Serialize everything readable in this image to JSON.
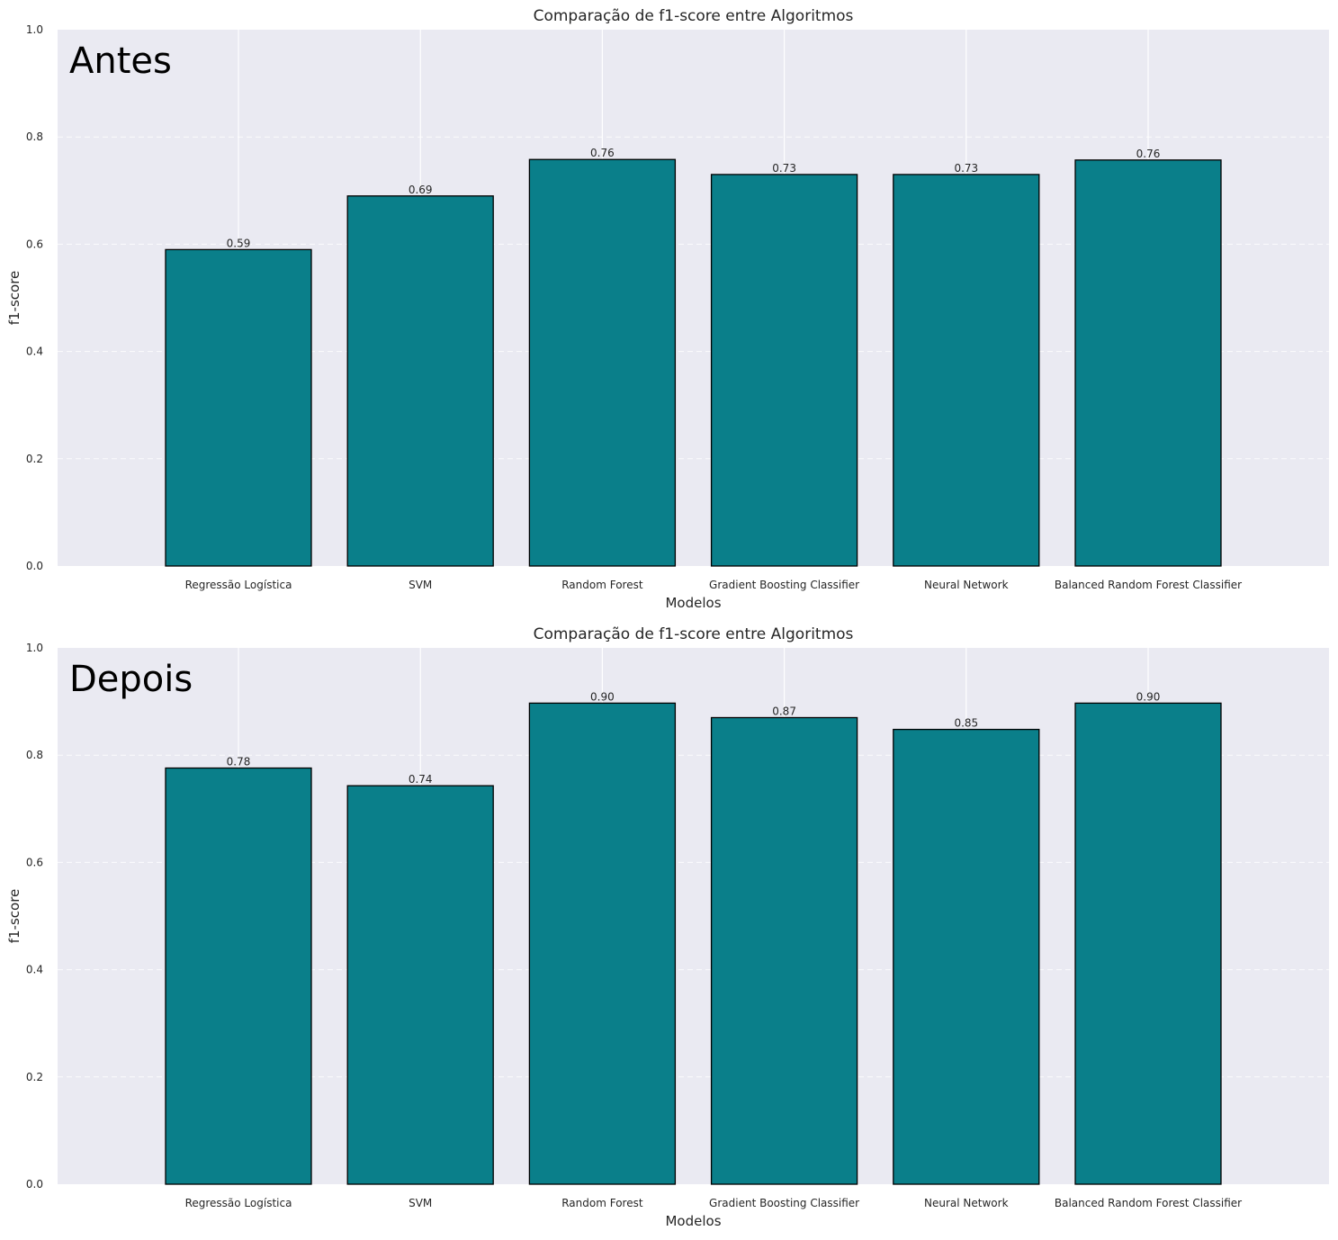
{
  "colors": {
    "bar": "#0a7f8a",
    "bar_edge": "#000000",
    "plot_background": "#eaeaf2",
    "grid": "#ffffff"
  },
  "chart_data": [
    {
      "type": "bar",
      "title": "Comparação de f1-score entre Algoritmos",
      "panel_tag": "Antes",
      "xlabel": "Modelos",
      "ylabel": "f1-score",
      "ylim": [
        0,
        1.0
      ],
      "yticks": [
        "0.0",
        "0.2",
        "0.4",
        "0.6",
        "0.8",
        "1.0"
      ],
      "categories": [
        "Regressão Logística",
        "SVM",
        "Random Forest",
        "Gradient Boosting Classifier",
        "Neural Network",
        "Balanced Random Forest Classifier"
      ],
      "values": [
        0.59,
        0.69,
        0.758,
        0.73,
        0.73,
        0.757
      ],
      "value_labels": [
        "0.59",
        "0.69",
        "0.76",
        "0.73",
        "0.73",
        "0.76"
      ],
      "grid": true
    },
    {
      "type": "bar",
      "title": "Comparação de f1-score entre Algoritmos",
      "panel_tag": "Depois",
      "xlabel": "Modelos",
      "ylabel": "f1-score",
      "ylim": [
        0,
        1.0
      ],
      "yticks": [
        "0.0",
        "0.2",
        "0.4",
        "0.6",
        "0.8",
        "1.0"
      ],
      "categories": [
        "Regressão Logística",
        "SVM",
        "Random Forest",
        "Gradient Boosting Classifier",
        "Neural Network",
        "Balanced Random Forest Classifier"
      ],
      "values": [
        0.776,
        0.743,
        0.897,
        0.87,
        0.848,
        0.897
      ],
      "value_labels": [
        "0.78",
        "0.74",
        "0.90",
        "0.87",
        "0.85",
        "0.90"
      ],
      "grid": true
    }
  ]
}
